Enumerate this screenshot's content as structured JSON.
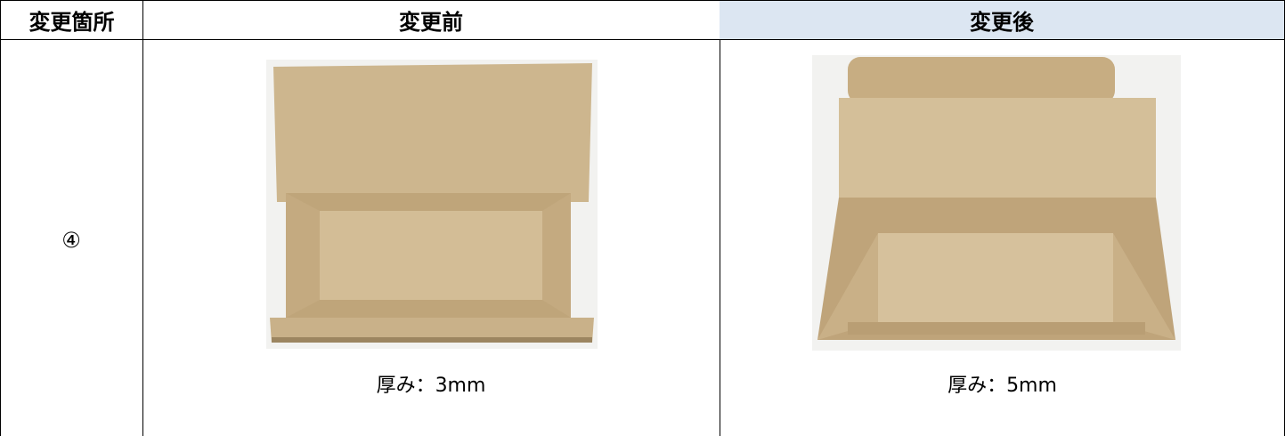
{
  "table": {
    "header": [
      "変更箇所",
      "変更前",
      "変更後"
    ],
    "rows": [
      [
        "④",
        {
          "caption": "厚み：3mm"
        },
        {
          "caption": "厚み：5mm"
        }
      ]
    ]
  }
}
